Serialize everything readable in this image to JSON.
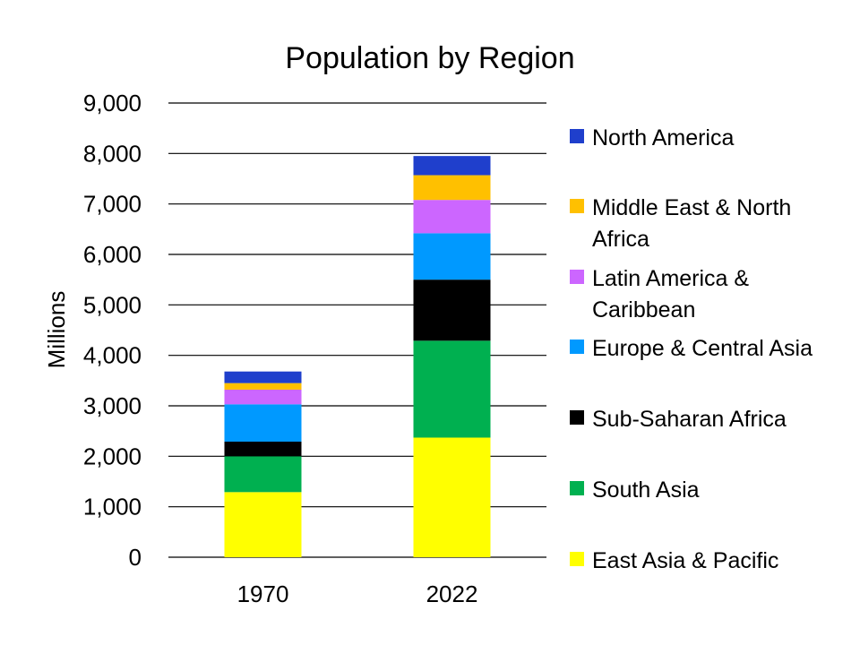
{
  "chart_data": {
    "type": "bar",
    "stacked": true,
    "title": "Population by Region",
    "xlabel": "",
    "ylabel": "Millions",
    "ylim": [
      0,
      9000
    ],
    "yticks": [
      0,
      1000,
      2000,
      3000,
      4000,
      5000,
      6000,
      7000,
      8000,
      9000
    ],
    "ytick_labels": [
      "0",
      "1,000",
      "2,000",
      "3,000",
      "4,000",
      "5,000",
      "6,000",
      "7,000",
      "8,000",
      "9,000"
    ],
    "grid": true,
    "legend_position": "right",
    "categories": [
      "1970",
      "2022"
    ],
    "series": [
      {
        "name": "East Asia & Pacific",
        "legend_lines": [
          "East Asia & Pacific"
        ],
        "color": "#FFFF00",
        "values": [
          1290,
          2370
        ]
      },
      {
        "name": "South Asia",
        "legend_lines": [
          "South Asia"
        ],
        "color": "#00B050",
        "values": [
          710,
          1920
        ]
      },
      {
        "name": "Sub-Saharan Africa",
        "legend_lines": [
          "Sub-Saharan Africa"
        ],
        "color": "#000000",
        "values": [
          290,
          1210
        ]
      },
      {
        "name": "Europe & Central Asia",
        "legend_lines": [
          "Europe & Central Asia"
        ],
        "color": "#0099FF",
        "values": [
          740,
          920
        ]
      },
      {
        "name": "Latin America & Caribbean",
        "legend_lines": [
          "Latin America &",
          "Caribbean"
        ],
        "color": "#CC66FF",
        "values": [
          290,
          660
        ]
      },
      {
        "name": "Middle East & North Africa",
        "legend_lines": [
          "Middle East & North",
          "Africa"
        ],
        "color": "#FFC000",
        "values": [
          130,
          490
        ]
      },
      {
        "name": "North America",
        "legend_lines": [
          "North America"
        ],
        "color": "#1F3FCC",
        "values": [
          230,
          380
        ]
      }
    ]
  }
}
